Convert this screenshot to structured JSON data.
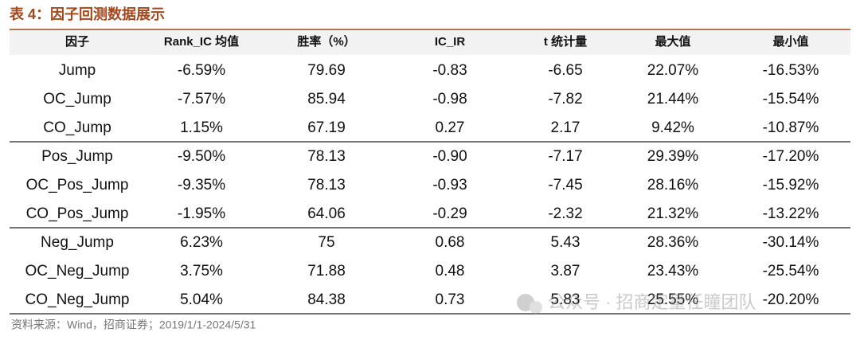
{
  "header": {
    "title": "表 4：因子回测数据展示"
  },
  "table": {
    "columns": [
      "因子",
      "Rank_IC 均值",
      "胜率（%）",
      "IC_IR",
      "t 统计量",
      "最大值",
      "最小值"
    ],
    "groups": [
      {
        "rows": [
          [
            "Jump",
            "-6.59%",
            "79.69",
            "-0.83",
            "-6.65",
            "22.07%",
            "-16.53%"
          ],
          [
            "OC_Jump",
            "-7.57%",
            "85.94",
            "-0.98",
            "-7.82",
            "21.44%",
            "-15.54%"
          ],
          [
            "CO_Jump",
            "1.15%",
            "67.19",
            "0.27",
            "2.17",
            "9.42%",
            "-10.87%"
          ]
        ]
      },
      {
        "rows": [
          [
            "Pos_Jump",
            "-9.50%",
            "78.13",
            "-0.90",
            "-7.17",
            "29.39%",
            "-17.20%"
          ],
          [
            "OC_Pos_Jump",
            "-9.35%",
            "78.13",
            "-0.93",
            "-7.45",
            "28.16%",
            "-15.92%"
          ],
          [
            "CO_Pos_Jump",
            "-1.95%",
            "64.06",
            "-0.29",
            "-2.32",
            "21.32%",
            "-13.22%"
          ]
        ]
      },
      {
        "rows": [
          [
            "Neg_Jump",
            "6.23%",
            "75",
            "0.68",
            "5.43",
            "28.36%",
            "-30.14%"
          ],
          [
            "OC_Neg_Jump",
            "3.75%",
            "71.88",
            "0.48",
            "3.87",
            "23.43%",
            "-25.54%"
          ],
          [
            "CO_Neg_Jump",
            "5.04%",
            "84.38",
            "0.73",
            "5.83",
            "25.55%",
            "-20.20%"
          ]
        ]
      }
    ]
  },
  "source": "资料来源：Wind，招商证券；2019/1/1-2024/5/31",
  "watermark": "公众号 · 招商定量任瞳团队"
}
